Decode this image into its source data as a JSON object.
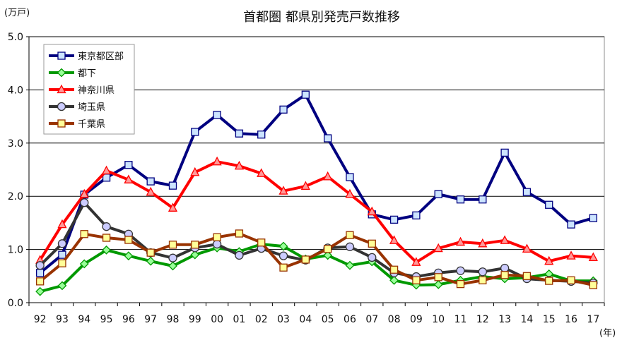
{
  "chart_data": {
    "type": "line",
    "title": "首都圏 都県別発売戸数推移",
    "ylabel": "(万戸)",
    "xlabel": "(年)",
    "ylim": [
      0,
      5
    ],
    "y_ticks": [
      "0.0",
      "1.0",
      "2.0",
      "3.0",
      "4.0",
      "5.0"
    ],
    "grid": true,
    "legend_position": "top-left",
    "categories": [
      "92",
      "93",
      "94",
      "95",
      "96",
      "97",
      "98",
      "99",
      "00",
      "01",
      "02",
      "03",
      "04",
      "05",
      "06",
      "07",
      "08",
      "09",
      "10",
      "11",
      "12",
      "13",
      "14",
      "15",
      "16",
      "17"
    ],
    "series": [
      {
        "name": "東京都区部",
        "color": "#000080",
        "marker": "square",
        "marker_fill": "#cce4ff",
        "values": [
          0.56,
          0.9,
          2.03,
          2.35,
          2.59,
          2.28,
          2.2,
          3.21,
          3.53,
          3.18,
          3.16,
          3.63,
          3.91,
          3.09,
          2.36,
          1.66,
          1.56,
          1.64,
          2.04,
          1.94,
          1.94,
          2.82,
          2.08,
          1.84,
          1.47,
          1.59
        ]
      },
      {
        "name": "都下",
        "color": "#009900",
        "marker": "diamond",
        "marker_fill": "#99ff99",
        "values": [
          0.21,
          0.32,
          0.73,
          0.99,
          0.88,
          0.78,
          0.69,
          0.9,
          1.03,
          0.96,
          1.1,
          1.06,
          0.82,
          0.89,
          0.7,
          0.77,
          0.42,
          0.33,
          0.34,
          0.42,
          0.49,
          0.45,
          0.47,
          0.54,
          0.41,
          0.41
        ]
      },
      {
        "name": "神奈川県",
        "color": "#ff0000",
        "marker": "triangle",
        "marker_fill": "#ff9999",
        "values": [
          0.8,
          1.47,
          2.04,
          2.48,
          2.31,
          2.08,
          1.78,
          2.45,
          2.65,
          2.57,
          2.43,
          2.1,
          2.19,
          2.37,
          2.04,
          1.71,
          1.17,
          0.76,
          1.02,
          1.14,
          1.11,
          1.17,
          1.01,
          0.78,
          0.88,
          0.85
        ]
      },
      {
        "name": "埼玉県",
        "color": "#333333",
        "marker": "circle",
        "marker_fill": "#ccccff",
        "values": [
          0.7,
          1.11,
          1.88,
          1.43,
          1.29,
          0.94,
          0.84,
          1.03,
          1.1,
          0.89,
          1.02,
          0.88,
          0.8,
          1.03,
          1.05,
          0.85,
          0.56,
          0.49,
          0.56,
          0.6,
          0.58,
          0.65,
          0.45,
          0.42,
          0.4,
          0.37
        ]
      },
      {
        "name": "千葉県",
        "color": "#993300",
        "marker": "square",
        "marker_fill": "#ffff99",
        "values": [
          0.4,
          0.74,
          1.29,
          1.22,
          1.18,
          0.94,
          1.09,
          1.09,
          1.23,
          1.3,
          1.13,
          0.66,
          0.81,
          1.01,
          1.27,
          1.11,
          0.62,
          0.42,
          0.48,
          0.35,
          0.42,
          0.52,
          0.5,
          0.41,
          0.42,
          0.33
        ]
      }
    ]
  }
}
